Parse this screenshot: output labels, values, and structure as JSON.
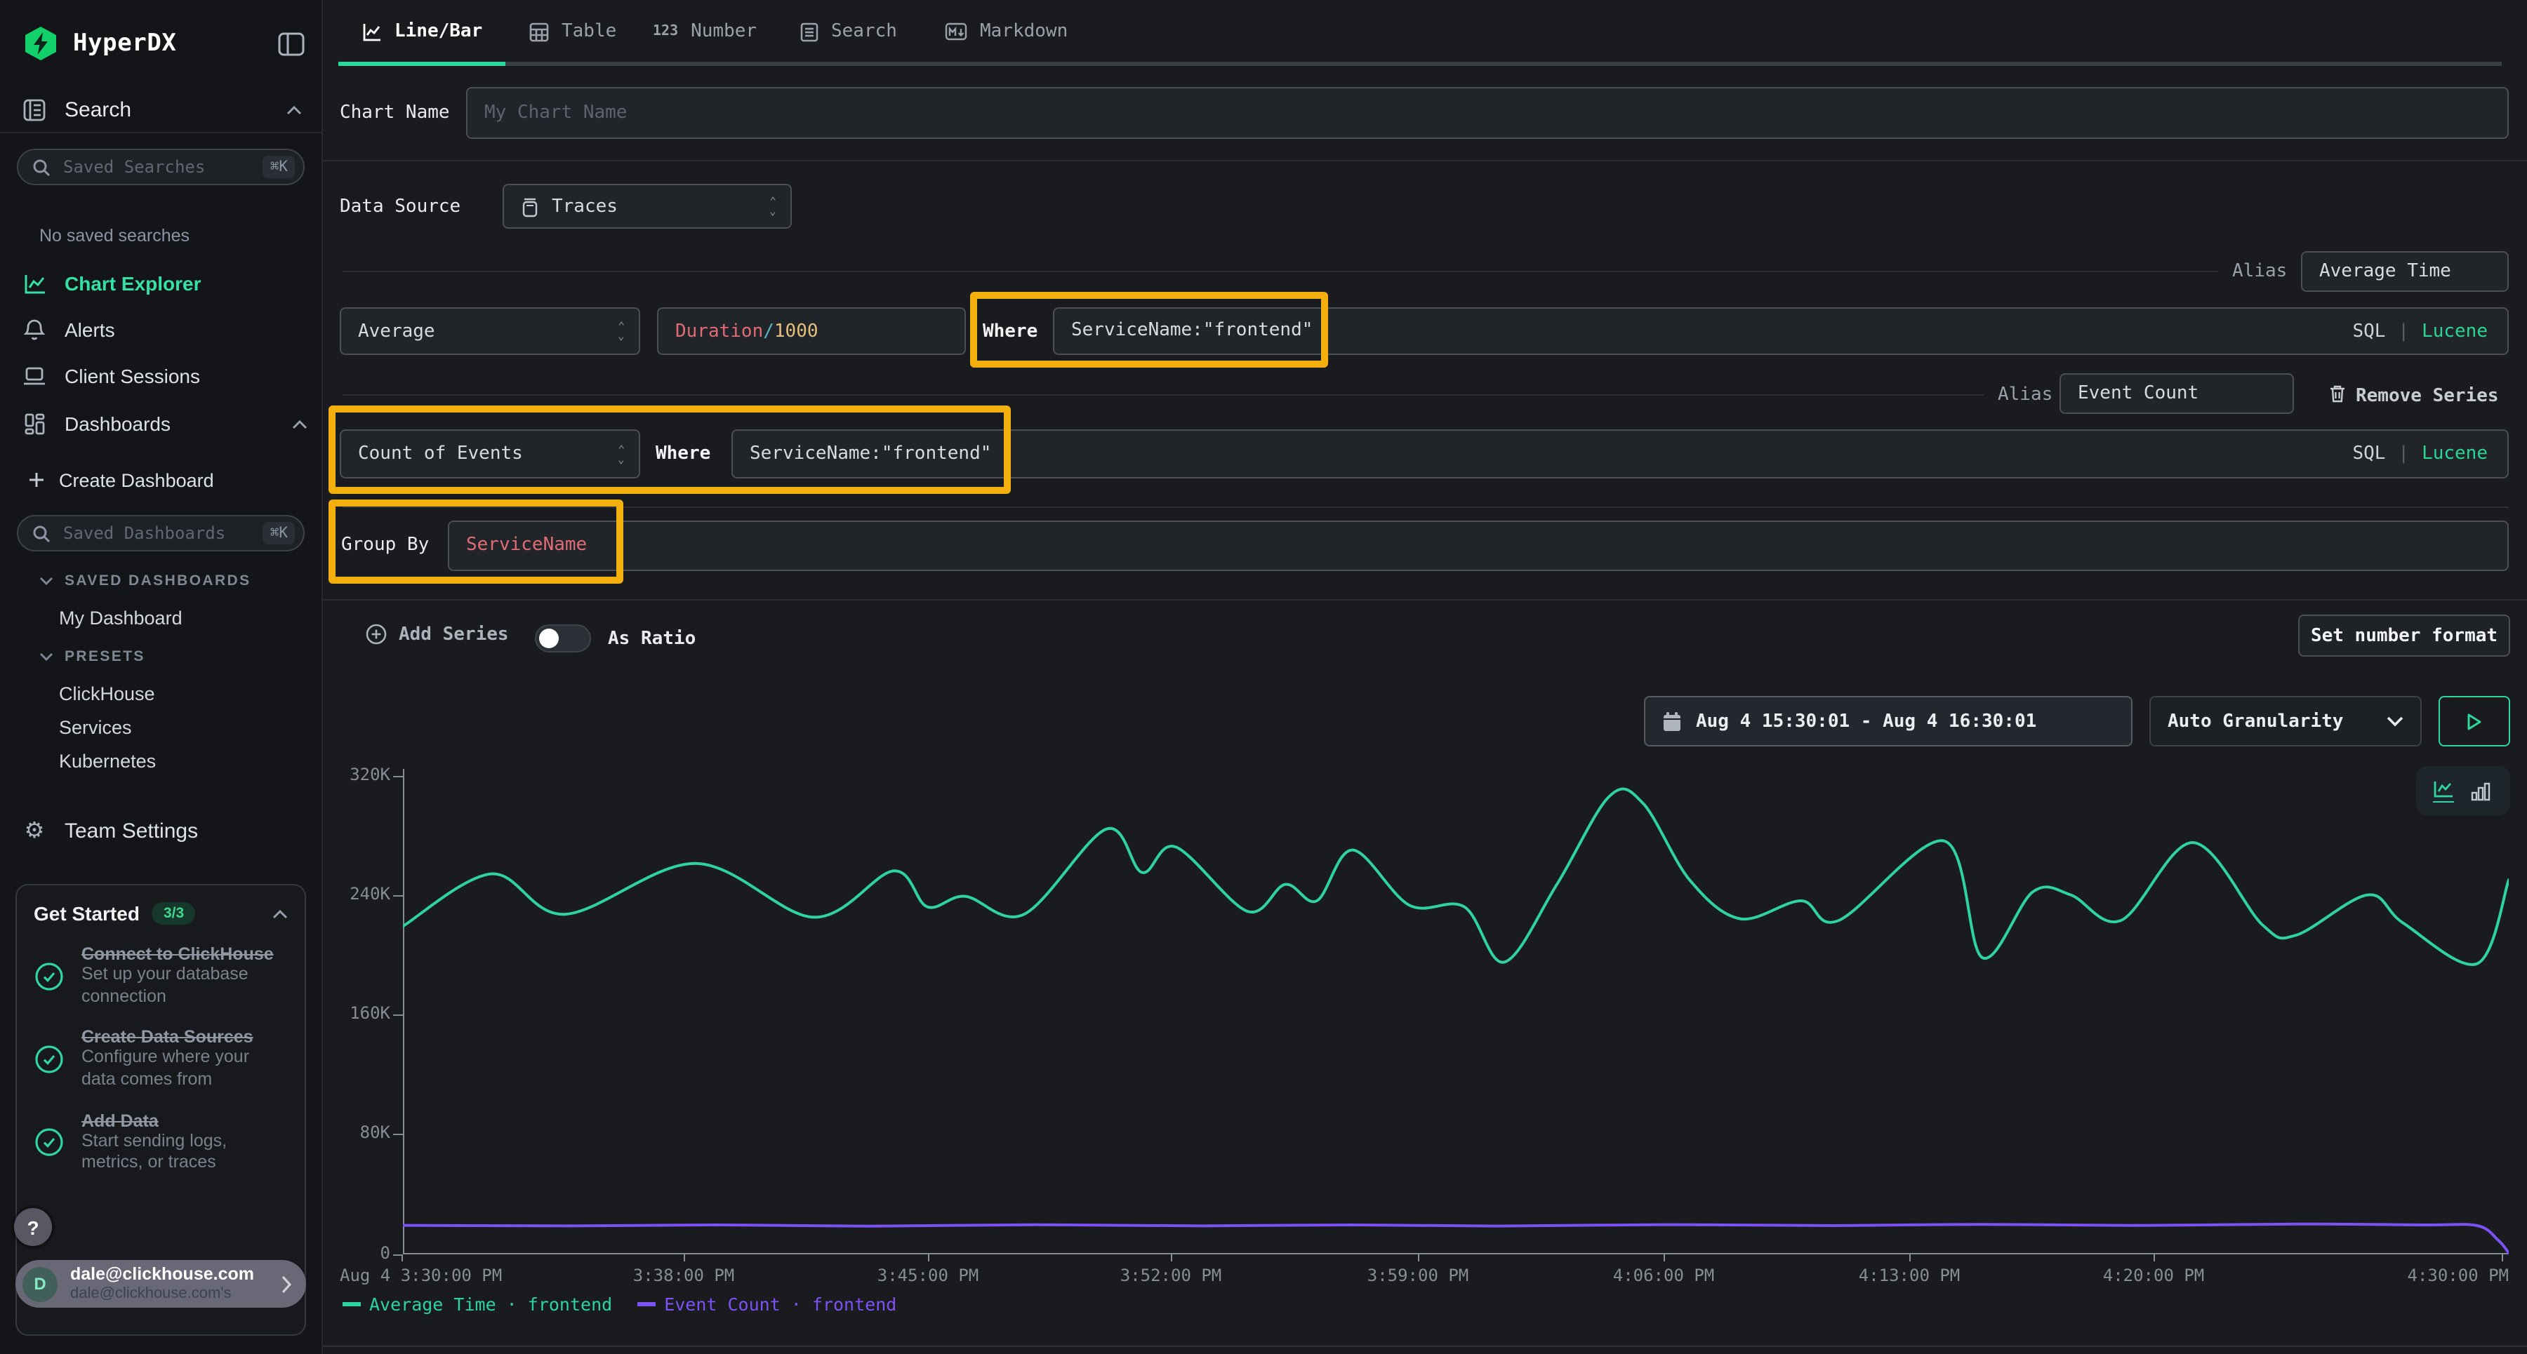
{
  "sidebar": {
    "brand": "HyperDX",
    "search_section": "Search",
    "saved_searches": {
      "placeholder": "Saved Searches",
      "shortcut": "⌘K"
    },
    "no_saved_searches": "No saved searches",
    "nav": [
      {
        "label": "Chart Explorer",
        "active": true
      },
      {
        "label": "Alerts",
        "active": false
      },
      {
        "label": "Client Sessions",
        "active": false
      },
      {
        "label": "Dashboards",
        "active": false
      }
    ],
    "create_dashboard": "Create Dashboard",
    "saved_dashboards": {
      "placeholder": "Saved Dashboards",
      "shortcut": "⌘K"
    },
    "saved_dashboards_section": "SAVED DASHBOARDS",
    "my_dashboard": "My Dashboard",
    "presets_section": "PRESETS",
    "presets": [
      "ClickHouse",
      "Services",
      "Kubernetes"
    ],
    "team_settings": "Team Settings",
    "get_started": {
      "title": "Get Started",
      "badge": "3/3",
      "items": [
        {
          "title": "Connect to ClickHouse",
          "desc": "Set up your database connection"
        },
        {
          "title": "Create Data Sources",
          "desc": "Configure where your data comes from"
        },
        {
          "title": "Add Data",
          "desc": "Start sending logs, metrics, or traces"
        }
      ]
    },
    "help": "?",
    "user": {
      "avatar": "D",
      "email": "dale@clickhouse.com",
      "team": "dale@clickhouse.com's"
    }
  },
  "tabs": [
    {
      "label": "Line/Bar",
      "active": true
    },
    {
      "label": "Table",
      "active": false
    },
    {
      "label": "Number",
      "active": false
    },
    {
      "label": "Search",
      "active": false
    },
    {
      "label": "Markdown",
      "active": false
    }
  ],
  "editor": {
    "chart_name_label": "Chart Name",
    "chart_name_placeholder": "My Chart Name",
    "data_source_label": "Data Source",
    "data_source_value": "Traces",
    "alias_label": "Alias",
    "sql_label": "SQL",
    "lucene_label": "Lucene",
    "series1": {
      "aggregation": "Average",
      "field_tokens": {
        "name": "Duration",
        "op": "/",
        "value": "1000"
      },
      "where_label": "Where",
      "where_value": "ServiceName:\"frontend\"",
      "alias_value": "Average Time"
    },
    "series2": {
      "aggregation": "Count of Events",
      "where_label": "Where",
      "where_value": "ServiceName:\"frontend\"",
      "alias_value": "Event Count",
      "remove_label": "Remove Series"
    },
    "group_by": {
      "label": "Group By",
      "value": "ServiceName"
    },
    "add_series_label": "Add Series",
    "as_ratio_label": "As Ratio",
    "set_number_format_label": "Set number format"
  },
  "toolbar": {
    "date_range": "Aug 4 15:30:01 - Aug 4 16:30:01",
    "granularity": "Auto Granularity"
  },
  "chart_data": {
    "type": "line",
    "x_axis_labels": [
      "Aug 4 3:30:00 PM",
      "3:38:00 PM",
      "3:45:00 PM",
      "3:52:00 PM",
      "3:59:00 PM",
      "4:06:00 PM",
      "4:13:00 PM",
      "4:20:00 PM",
      "4:30:00 PM"
    ],
    "y_axis_labels": [
      "320K",
      "240K",
      "160K",
      "80K",
      "0"
    ],
    "ylim": [
      0,
      320000
    ],
    "values_unit": "thousands",
    "grid": false,
    "legend_position": "bottom",
    "series": [
      {
        "name": "Average Time · frontend",
        "color": "#2fd3a0",
        "points": [
          [
            0.0,
            219
          ],
          [
            0.042,
            254
          ],
          [
            0.077,
            227
          ],
          [
            0.139,
            261
          ],
          [
            0.195,
            225
          ],
          [
            0.233,
            256
          ],
          [
            0.249,
            232
          ],
          [
            0.267,
            239
          ],
          [
            0.295,
            227
          ],
          [
            0.334,
            284
          ],
          [
            0.351,
            255
          ],
          [
            0.367,
            272
          ],
          [
            0.401,
            229
          ],
          [
            0.419,
            247
          ],
          [
            0.434,
            236
          ],
          [
            0.451,
            270
          ],
          [
            0.478,
            233
          ],
          [
            0.504,
            232
          ],
          [
            0.523,
            195
          ],
          [
            0.548,
            247
          ],
          [
            0.573,
            306
          ],
          [
            0.589,
            301
          ],
          [
            0.611,
            250
          ],
          [
            0.635,
            224
          ],
          [
            0.664,
            236
          ],
          [
            0.682,
            223
          ],
          [
            0.732,
            276
          ],
          [
            0.75,
            198
          ],
          [
            0.774,
            242
          ],
          [
            0.792,
            240
          ],
          [
            0.816,
            223
          ],
          [
            0.85,
            275
          ],
          [
            0.883,
            220
          ],
          [
            0.899,
            213
          ],
          [
            0.933,
            240
          ],
          [
            0.95,
            221
          ],
          [
            0.985,
            194
          ],
          [
            1.0,
            250
          ]
        ]
      },
      {
        "name": "Event Count · frontend",
        "color": "#7d52f4",
        "points": [
          [
            0.0,
            19
          ],
          [
            0.08,
            18.6
          ],
          [
            0.15,
            19.2
          ],
          [
            0.22,
            18.4
          ],
          [
            0.3,
            19.3
          ],
          [
            0.38,
            18.6
          ],
          [
            0.45,
            19.2
          ],
          [
            0.52,
            18.5
          ],
          [
            0.6,
            19.4
          ],
          [
            0.68,
            18.8
          ],
          [
            0.75,
            19.6
          ],
          [
            0.82,
            18.9
          ],
          [
            0.9,
            19.8
          ],
          [
            0.96,
            19.2
          ],
          [
            0.985,
            18.8
          ],
          [
            0.995,
            9
          ],
          [
            1.0,
            0.5
          ]
        ]
      }
    ]
  }
}
